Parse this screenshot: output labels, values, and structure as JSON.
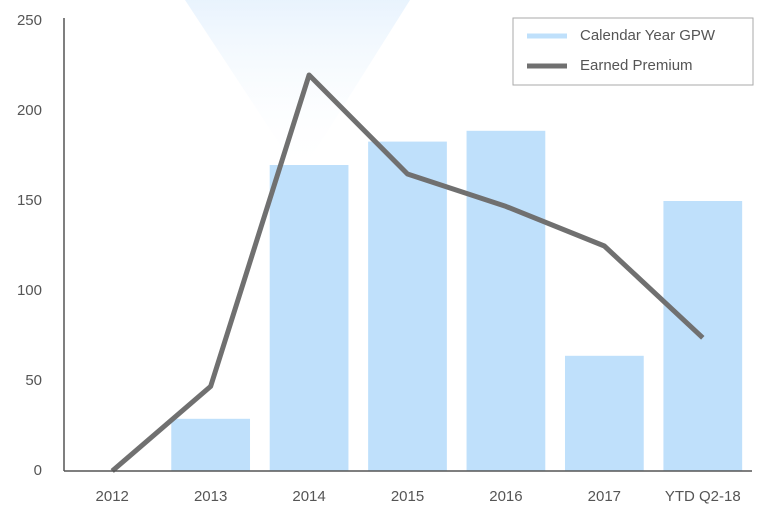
{
  "chart_data": {
    "type": "bar",
    "categories": [
      "2012",
      "2013",
      "2014",
      "2015",
      "2016",
      "2017",
      "YTD Q2-18"
    ],
    "series": [
      {
        "name": "Calendar Year GPW",
        "type": "bar",
        "color": "#bfe0fb",
        "values": [
          0,
          29,
          170,
          183,
          189,
          64,
          150
        ]
      },
      {
        "name": "Earned Premium",
        "type": "line",
        "color": "#707070",
        "values": [
          0,
          47,
          220,
          165,
          147,
          125,
          74
        ]
      }
    ],
    "ylim": [
      0,
      250
    ],
    "yticks": [
      0,
      50,
      100,
      150,
      200,
      250
    ],
    "grid": false,
    "legend": "top-right"
  }
}
